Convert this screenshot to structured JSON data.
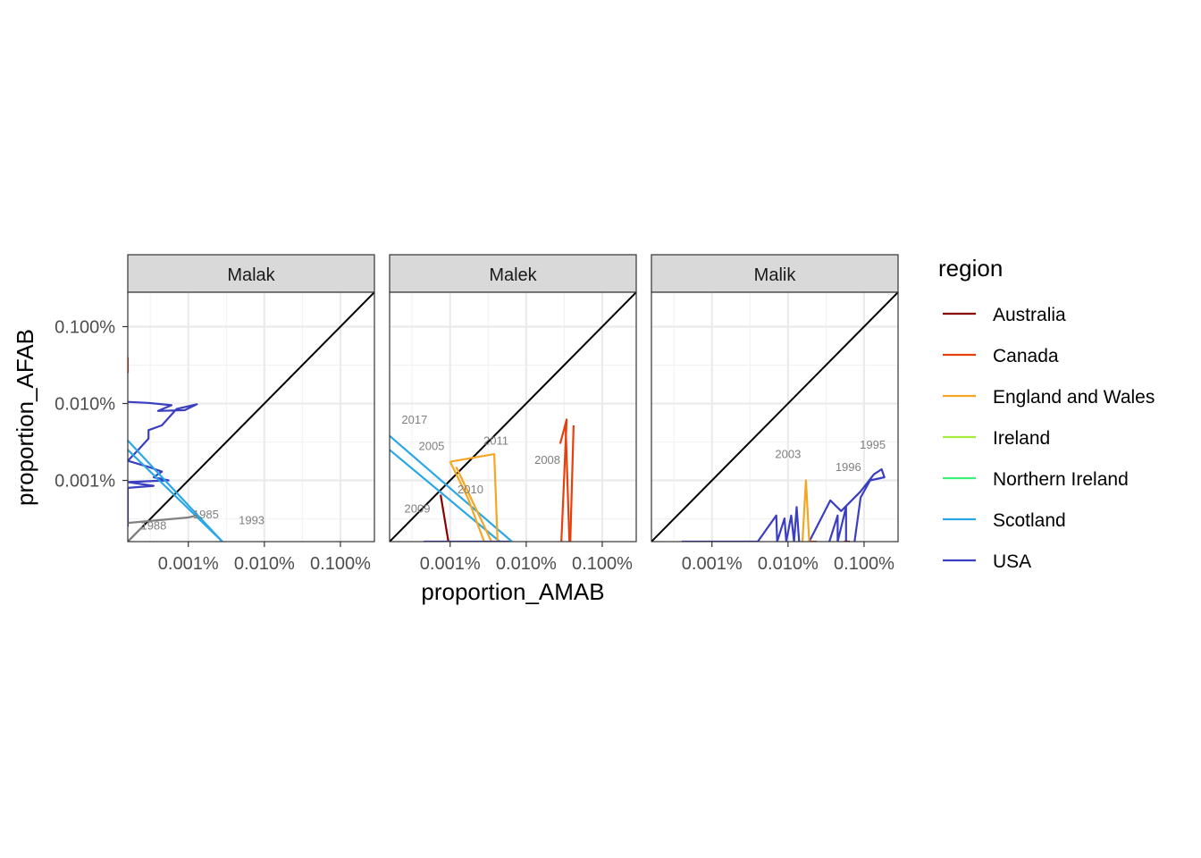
{
  "chart_data": {
    "type": "line",
    "xlabel": "proportion_AMAB",
    "ylabel": "proportion_AFAB",
    "x_scale": "log10",
    "y_scale": "log10",
    "xlim": [
      1.6e-06,
      0.0028
    ],
    "ylim": [
      1.6e-06,
      0.0028
    ],
    "x_ticks": [
      {
        "value": 1e-05,
        "label": "0.001%"
      },
      {
        "value": 0.0001,
        "label": "0.010%"
      },
      {
        "value": 0.001,
        "label": "0.100%"
      }
    ],
    "y_ticks": [
      {
        "value": 1e-05,
        "label": "0.001%"
      },
      {
        "value": 0.0001,
        "label": "0.010%"
      },
      {
        "value": 0.001,
        "label": "0.100%"
      }
    ],
    "grid": true,
    "reference_line": "y = x",
    "legend": {
      "title": "region",
      "position": "right",
      "entries": [
        {
          "name": "Australia",
          "color": "#8b0000"
        },
        {
          "name": "Canada",
          "color": "#e8400c"
        },
        {
          "name": "England and Wales",
          "color": "#f5a623"
        },
        {
          "name": "Ireland",
          "color": "#a5ec3c"
        },
        {
          "name": "Northern Ireland",
          "color": "#3cf07a"
        },
        {
          "name": "Scotland",
          "color": "#2aa7e6"
        },
        {
          "name": "USA",
          "color": "#3a3ec1"
        }
      ]
    },
    "facets": [
      {
        "name": "Malak",
        "series": [
          {
            "region": "USA",
            "color": "#3a3ec1",
            "points": [
              [
                1.6e-06,
                0.000105
              ],
              [
                3e-06,
                0.000102
              ],
              [
                6e-06,
                9.5e-05
              ],
              [
                4e-06,
                8e-05
              ],
              [
                9e-06,
                8.2e-05
              ],
              [
                1.3e-05,
                9.8e-05
              ],
              [
                7e-06,
                8.5e-05
              ],
              [
                4.5e-06,
                5.2e-05
              ],
              [
                3e-06,
                4.5e-05
              ],
              [
                3e-06,
                3.5e-05
              ],
              [
                2.2e-06,
                2.5e-05
              ],
              [
                1.6e-06,
                1.8e-05
              ],
              [
                3e-06,
                1.5e-05
              ],
              [
                4.5e-06,
                1.3e-05
              ],
              [
                3.5e-06,
                1.1e-05
              ],
              [
                5.5e-06,
                1e-05
              ],
              [
                1.6e-06,
                9.5e-06
              ],
              [
                3.5e-06,
                8.5e-06
              ],
              [
                1.6e-06,
                8e-06
              ],
              [
                1.6e-06,
                4.5e-06
              ],
              [
                1.6e-06,
                2.5e-06
              ]
            ]
          },
          {
            "region": "Scotland",
            "color": "#2aa7e6",
            "points": [
              [
                1.6e-06,
                3.3e-05
              ],
              [
                2.8e-05,
                1.6e-06
              ]
            ]
          },
          {
            "region": "Scotland",
            "color": "#2aa7e6",
            "points": [
              [
                1.6e-06,
                2.5e-05
              ],
              [
                2.8e-05,
                1.6e-06
              ]
            ]
          },
          {
            "region": "Canada",
            "color": "#e8400c",
            "points": [
              [
                1.6e-06,
                0.0004
              ],
              [
                1.6e-06,
                0.00025
              ]
            ]
          },
          {
            "region": "other",
            "color": "#808080",
            "points": [
              [
                1.6e-06,
                2.8e-06
              ],
              [
                1e-05,
                3.3e-06
              ],
              [
                1.3e-05,
                3.5e-06
              ]
            ]
          },
          {
            "region": "other",
            "color": "#808080",
            "points": [
              [
                1.6e-06,
                1.6e-06
              ],
              [
                2.5e-06,
                2.5e-06
              ]
            ]
          }
        ],
        "labels": [
          {
            "text": "1985",
            "x": 1.7e-05,
            "y": 3.2e-06
          },
          {
            "text": "1993",
            "x": 6.8e-05,
            "y": 2.7e-06
          },
          {
            "text": "1988",
            "x": 3.5e-06,
            "y": 2.3e-06
          }
        ]
      },
      {
        "name": "Malek",
        "series": [
          {
            "region": "Scotland",
            "color": "#2aa7e6",
            "points": [
              [
                1.6e-06,
                3.8e-05
              ],
              [
                6.5e-05,
                1.6e-06
              ]
            ]
          },
          {
            "region": "Scotland",
            "color": "#2aa7e6",
            "points": [
              [
                1.6e-06,
                2.5e-05
              ],
              [
                4.5e-05,
                1.6e-06
              ]
            ]
          },
          {
            "region": "England and Wales",
            "color": "#f5a623",
            "points": [
              [
                1e-05,
                1.75e-05
              ],
              [
                3.8e-05,
                2.2e-05
              ],
              [
                4.2e-05,
                1.6e-06
              ]
            ]
          },
          {
            "region": "England and Wales",
            "color": "#f5a623",
            "points": [
              [
                1e-05,
                1.75e-05
              ],
              [
                1.7e-05,
                6e-06
              ],
              [
                2.8e-05,
                1.6e-06
              ]
            ]
          },
          {
            "region": "England and Wales",
            "color": "#f5a623",
            "points": [
              [
                1.2e-05,
                1.5e-05
              ],
              [
                3.5e-05,
                1.6e-06
              ]
            ]
          },
          {
            "region": "Australia",
            "color": "#8b0000",
            "points": [
              [
                7.5e-06,
                6.5e-06
              ],
              [
                9.5e-06,
                1.6e-06
              ]
            ]
          },
          {
            "region": "Canada",
            "color": "#e8400c",
            "points": [
              [
                0.00028,
                3e-05
              ],
              [
                0.00034,
                6.2e-05
              ],
              [
                0.00029,
                1.6e-06
              ]
            ]
          },
          {
            "region": "Canada",
            "color": "#e8400c",
            "points": [
              [
                0.00033,
                5e-05
              ],
              [
                0.00037,
                1.6e-06
              ]
            ]
          },
          {
            "region": "Canada",
            "color": "#e8400c",
            "points": [
              [
                0.00042,
                5.2e-05
              ],
              [
                0.00038,
                1.6e-06
              ]
            ]
          },
          {
            "region": "USA",
            "color": "#3a3ec1",
            "points": [
              [
                4.5e-06,
                1.6e-06
              ],
              [
                6e-05,
                1.6e-06
              ]
            ]
          }
        ],
        "labels": [
          {
            "text": "2017",
            "x": 3.4e-06,
            "y": 5.5e-05
          },
          {
            "text": "2005",
            "x": 5.7e-06,
            "y": 2.5e-05
          },
          {
            "text": "2011",
            "x": 4e-05,
            "y": 2.9e-05
          },
          {
            "text": "2008",
            "x": 0.00019,
            "y": 1.65e-05
          },
          {
            "text": "2010",
            "x": 1.85e-05,
            "y": 6.8e-06
          },
          {
            "text": "2009",
            "x": 3.7e-06,
            "y": 3.8e-06
          }
        ]
      },
      {
        "name": "Malik",
        "series": [
          {
            "region": "USA",
            "color": "#3a3ec1",
            "points": [
              [
                4e-06,
                1.6e-06
              ],
              [
                4e-05,
                1.6e-06
              ]
            ]
          },
          {
            "region": "USA",
            "color": "#3a3ec1",
            "points": [
              [
                4e-05,
                1.6e-06
              ],
              [
                7e-05,
                3.5e-06
              ],
              [
                7.2e-05,
                1.6e-06
              ],
              [
                9e-05,
                3.2e-06
              ],
              [
                9.5e-05,
                1.6e-06
              ],
              [
                0.00011,
                3.5e-06
              ],
              [
                0.00012,
                1.6e-06
              ],
              [
                0.00013,
                4.5e-06
              ],
              [
                0.00014,
                1.6e-06
              ]
            ]
          },
          {
            "region": "USA",
            "color": "#3a3ec1",
            "points": [
              [
                0.00019,
                1.6e-06
              ],
              [
                0.00036,
                5.5e-06
              ],
              [
                0.0005,
                4e-06
              ],
              [
                0.0009,
                7.2e-06
              ],
              [
                0.00135,
                1.2e-05
              ],
              [
                0.0017,
                1.4e-05
              ],
              [
                0.00185,
                1.1e-05
              ],
              [
                0.0012,
                1e-05
              ],
              [
                0.0009,
                6e-06
              ],
              [
                0.00075,
                1.6e-06
              ]
            ]
          },
          {
            "region": "USA",
            "color": "#3a3ec1",
            "points": [
              [
                0.00035,
                1.6e-06
              ],
              [
                0.00045,
                3.5e-06
              ],
              [
                0.00045,
                1.6e-06
              ],
              [
                0.00058,
                4.5e-06
              ],
              [
                0.00058,
                1.6e-06
              ]
            ]
          },
          {
            "region": "England and Wales",
            "color": "#f5a623",
            "points": [
              [
                0.000155,
                1.6e-06
              ],
              [
                0.000172,
                1e-05
              ],
              [
                0.00019,
                1.6e-06
              ]
            ]
          },
          {
            "region": "Canada",
            "color": "#e8400c",
            "points": [
              [
                0.0002,
                1.6e-06
              ],
              [
                0.00024,
                1.6e-06
              ]
            ]
          },
          {
            "region": "Australia",
            "color": "#8b0000",
            "points": [
              [
                0.00055,
                1.6e-06
              ],
              [
                0.00065,
                1.6e-06
              ]
            ]
          }
        ],
        "labels": [
          {
            "text": "2003",
            "x": 0.0001,
            "y": 1.95e-05
          },
          {
            "text": "1995",
            "x": 0.0013,
            "y": 2.6e-05
          },
          {
            "text": "1996",
            "x": 0.00062,
            "y": 1.33e-05
          }
        ]
      }
    ]
  }
}
